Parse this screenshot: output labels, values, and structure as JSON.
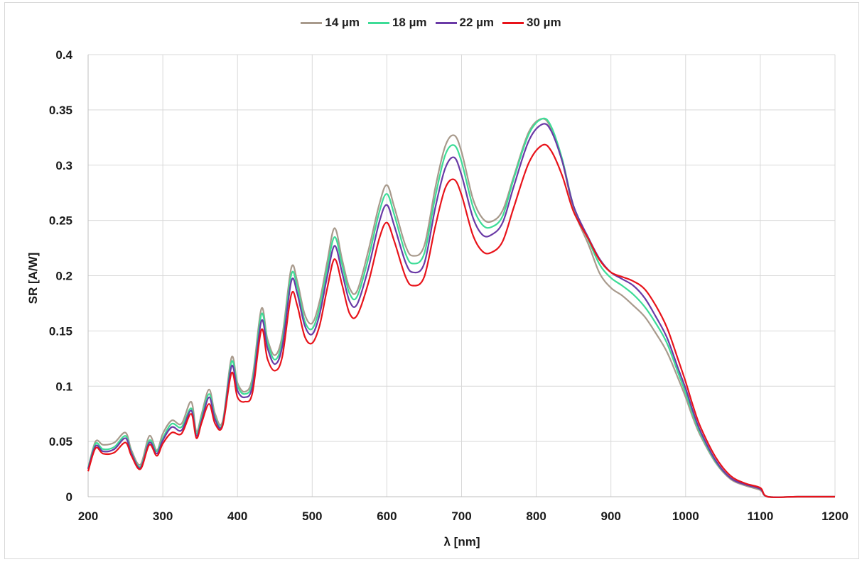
{
  "chart_data": {
    "type": "line",
    "title": "",
    "xlabel": "λ [nm]",
    "ylabel": "SR [A/W]",
    "xlim": [
      200,
      1200
    ],
    "ylim": [
      0,
      0.4
    ],
    "x_ticks": [
      "200",
      "300",
      "400",
      "500",
      "600",
      "700",
      "800",
      "900",
      "1000",
      "1100",
      "1200"
    ],
    "y_ticks": [
      "0",
      "0.05",
      "0.1",
      "0.15",
      "0.2",
      "0.25",
      "0.3",
      "0.35",
      "0.4"
    ],
    "grid": true,
    "legend_position": "top",
    "x": [
      200,
      210,
      220,
      235,
      250,
      258,
      270,
      282,
      292,
      300,
      312,
      325,
      338,
      345,
      352,
      362,
      370,
      380,
      392,
      400,
      410,
      420,
      432,
      440,
      450,
      460,
      472,
      480,
      490,
      500,
      510,
      520,
      530,
      540,
      550,
      560,
      575,
      590,
      600,
      610,
      625,
      635,
      650,
      665,
      678,
      690,
      700,
      715,
      728,
      740,
      755,
      770,
      790,
      808,
      820,
      835,
      850,
      870,
      885,
      900,
      915,
      930,
      945,
      960,
      975,
      990,
      1000,
      1010,
      1020,
      1040,
      1060,
      1080,
      1100,
      1110,
      1150,
      1200
    ],
    "series": [
      {
        "name": "14 µm",
        "color": "#a89a8c",
        "values": [
          0.026,
          0.05,
          0.047,
          0.049,
          0.058,
          0.042,
          0.029,
          0.055,
          0.042,
          0.057,
          0.069,
          0.066,
          0.086,
          0.059,
          0.075,
          0.097,
          0.075,
          0.068,
          0.126,
          0.103,
          0.095,
          0.108,
          0.17,
          0.143,
          0.128,
          0.146,
          0.207,
          0.195,
          0.165,
          0.157,
          0.177,
          0.212,
          0.243,
          0.215,
          0.189,
          0.186,
          0.222,
          0.265,
          0.282,
          0.262,
          0.227,
          0.218,
          0.227,
          0.28,
          0.317,
          0.327,
          0.312,
          0.27,
          0.252,
          0.249,
          0.259,
          0.29,
          0.33,
          0.342,
          0.333,
          0.303,
          0.26,
          0.228,
          0.202,
          0.189,
          0.182,
          0.173,
          0.163,
          0.148,
          0.131,
          0.107,
          0.09,
          0.071,
          0.055,
          0.031,
          0.016,
          0.01,
          0.006,
          0.0,
          0.0,
          0.0
        ]
      },
      {
        "name": "18 µm",
        "color": "#3ddc97",
        "values": [
          0.026,
          0.048,
          0.043,
          0.045,
          0.055,
          0.04,
          0.027,
          0.051,
          0.041,
          0.053,
          0.066,
          0.063,
          0.08,
          0.057,
          0.072,
          0.093,
          0.072,
          0.066,
          0.122,
          0.1,
          0.093,
          0.104,
          0.165,
          0.14,
          0.124,
          0.141,
          0.201,
          0.19,
          0.159,
          0.152,
          0.171,
          0.206,
          0.235,
          0.21,
          0.184,
          0.181,
          0.215,
          0.258,
          0.274,
          0.255,
          0.22,
          0.211,
          0.22,
          0.272,
          0.309,
          0.318,
          0.303,
          0.263,
          0.246,
          0.244,
          0.254,
          0.288,
          0.328,
          0.342,
          0.335,
          0.305,
          0.263,
          0.232,
          0.21,
          0.198,
          0.191,
          0.183,
          0.172,
          0.157,
          0.139,
          0.112,
          0.094,
          0.074,
          0.057,
          0.032,
          0.017,
          0.011,
          0.007,
          0.0,
          0.0,
          0.0
        ]
      },
      {
        "name": "22 µm",
        "color": "#6a3aa6",
        "values": [
          0.025,
          0.046,
          0.041,
          0.043,
          0.053,
          0.039,
          0.026,
          0.049,
          0.039,
          0.051,
          0.063,
          0.06,
          0.078,
          0.055,
          0.069,
          0.09,
          0.07,
          0.065,
          0.118,
          0.096,
          0.09,
          0.1,
          0.159,
          0.135,
          0.12,
          0.136,
          0.195,
          0.184,
          0.155,
          0.147,
          0.165,
          0.199,
          0.227,
          0.203,
          0.177,
          0.174,
          0.206,
          0.249,
          0.264,
          0.245,
          0.212,
          0.203,
          0.211,
          0.262,
          0.297,
          0.307,
          0.291,
          0.253,
          0.237,
          0.237,
          0.248,
          0.281,
          0.322,
          0.337,
          0.331,
          0.303,
          0.263,
          0.234,
          0.215,
          0.203,
          0.197,
          0.191,
          0.18,
          0.163,
          0.144,
          0.116,
          0.098,
          0.077,
          0.059,
          0.033,
          0.017,
          0.011,
          0.007,
          0.0,
          0.0,
          0.0
        ]
      },
      {
        "name": "30 µm",
        "color": "#e8131a",
        "values": [
          0.023,
          0.044,
          0.039,
          0.04,
          0.049,
          0.037,
          0.025,
          0.047,
          0.037,
          0.048,
          0.058,
          0.057,
          0.075,
          0.053,
          0.067,
          0.084,
          0.066,
          0.064,
          0.112,
          0.09,
          0.086,
          0.094,
          0.151,
          0.125,
          0.114,
          0.127,
          0.183,
          0.173,
          0.145,
          0.139,
          0.155,
          0.188,
          0.215,
          0.192,
          0.166,
          0.164,
          0.193,
          0.234,
          0.248,
          0.231,
          0.199,
          0.191,
          0.199,
          0.245,
          0.279,
          0.287,
          0.273,
          0.237,
          0.222,
          0.221,
          0.231,
          0.262,
          0.302,
          0.318,
          0.313,
          0.29,
          0.258,
          0.233,
          0.214,
          0.203,
          0.199,
          0.195,
          0.188,
          0.173,
          0.153,
          0.124,
          0.104,
          0.082,
          0.063,
          0.036,
          0.019,
          0.012,
          0.008,
          0.0,
          0.0,
          0.0
        ]
      }
    ]
  }
}
